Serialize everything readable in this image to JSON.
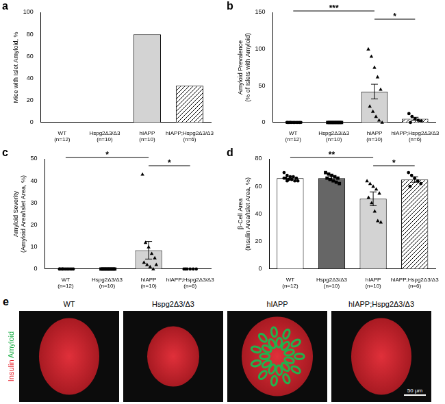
{
  "chart_data": [
    {
      "panel": "a",
      "type": "bar",
      "y_label": "Mice with Islet Amyloid, %",
      "categories": [
        [
          "WT",
          "(n=12)"
        ],
        [
          "Hspg2Δ3/Δ3",
          "(n=10)"
        ],
        [
          "hIAPP",
          "(n=10)"
        ],
        [
          "hIAPP;Hspg2Δ3/Δ3",
          "(n=6)"
        ]
      ],
      "values": [
        0,
        0,
        80,
        33.3
      ],
      "colors": [
        "#ffffff",
        "#666666",
        "#d3d3d3",
        "#ffffff"
      ],
      "ylim": [
        0,
        100
      ],
      "yticks": [
        0,
        20,
        40,
        60,
        80,
        100
      ],
      "grid": false
    },
    {
      "panel": "b",
      "type": "bar",
      "y_label": [
        "Amyloid Prevalence",
        "(% of Islets with Amyloid)"
      ],
      "categories": [
        [
          "WT",
          "(n=12)"
        ],
        [
          "Hspg2Δ3/Δ3",
          "(n=10)"
        ],
        [
          "hIAPP",
          "(n=10)"
        ],
        [
          "hIAPP;Hspg2Δ3/Δ3",
          "(n=6)"
        ]
      ],
      "values": [
        0,
        0,
        42,
        5
      ],
      "errors": [
        0,
        0,
        10,
        2
      ],
      "points": [
        [
          0,
          0,
          0,
          0,
          0,
          0,
          0,
          0,
          0,
          0,
          0,
          0
        ],
        [
          0,
          0,
          0,
          0,
          0,
          0,
          0,
          0,
          0,
          0
        ],
        [
          100,
          90,
          75,
          62,
          45,
          22,
          15,
          8,
          3,
          0
        ],
        [
          12,
          8,
          5,
          3,
          2,
          0
        ]
      ],
      "marker": [
        "circle",
        "rect",
        "triangle",
        "circle"
      ],
      "colors": [
        "#ffffff",
        "#666666",
        "#d3d3d3",
        "#ffffff"
      ],
      "significance": [
        {
          "between": [
            "WT",
            "hIAPP"
          ],
          "label": "***"
        },
        {
          "between": [
            "hIAPP",
            "hIAPP;Hspg2Δ3/Δ3"
          ],
          "label": "*"
        }
      ],
      "ylim": [
        0,
        150
      ],
      "yticks": [
        0,
        50,
        100,
        150
      ],
      "grid": false
    },
    {
      "panel": "c",
      "type": "bar",
      "y_label": [
        "Amyloid Severity",
        "(Amyloid Area/Islet Area, %)"
      ],
      "categories": [
        [
          "WT",
          "(n=12)"
        ],
        [
          "Hspg2Δ3/Δ3",
          "(n=10)"
        ],
        [
          "hIAPP",
          "(n=10)"
        ],
        [
          "hIAPP;Hspg2Δ3/Δ3",
          "(n=6)"
        ]
      ],
      "values": [
        0,
        0,
        8.5,
        0
      ],
      "errors": [
        0,
        0,
        4,
        0
      ],
      "points": [
        [
          0,
          0,
          0,
          0,
          0,
          0,
          0,
          0,
          0,
          0,
          0,
          0
        ],
        [
          0,
          0,
          0,
          0,
          0,
          0,
          0,
          0,
          0,
          0
        ],
        [
          43,
          12,
          10,
          7,
          5,
          3,
          2,
          1,
          0,
          2
        ],
        [
          0,
          0,
          0,
          0,
          0,
          0
        ]
      ],
      "marker": [
        "circle",
        "rect",
        "triangle",
        "circle"
      ],
      "colors": [
        "#ffffff",
        "#666666",
        "#d3d3d3",
        "#ffffff"
      ],
      "significance": [
        {
          "between": [
            "WT",
            "hIAPP"
          ],
          "label": "*"
        },
        {
          "between": [
            "hIAPP",
            "hIAPP;Hspg2Δ3/Δ3"
          ],
          "label": "*"
        }
      ],
      "ylim": [
        0,
        50
      ],
      "yticks": [
        0,
        10,
        20,
        30,
        40,
        50
      ],
      "grid": false
    },
    {
      "panel": "d",
      "type": "bar",
      "y_label": [
        "β-Cell Area",
        "(Insulin Area/Islet Area, %)"
      ],
      "categories": [
        [
          "WT",
          "(n=12)"
        ],
        [
          "Hspg2Δ3/Δ3",
          "(n=10)"
        ],
        [
          "hIAPP",
          "(n=10)"
        ],
        [
          "hIAPP;Hspg2Δ3/Δ3",
          "(n=6)"
        ]
      ],
      "values": [
        66,
        66,
        51,
        65
      ],
      "errors": [
        1,
        1.5,
        5,
        2
      ],
      "points": [
        [
          70,
          68,
          67,
          67,
          66,
          66,
          65,
          65,
          64,
          64,
          66,
          64
        ],
        [
          70,
          69,
          68,
          67,
          66,
          66,
          65,
          64,
          63,
          62
        ],
        [
          64,
          62,
          60,
          58,
          55,
          52,
          48,
          42,
          35,
          34
        ],
        [
          70,
          68,
          66,
          64,
          62,
          60
        ]
      ],
      "marker": [
        "circle",
        "rect",
        "triangle",
        "circle"
      ],
      "colors": [
        "#ffffff",
        "#666666",
        "#d3d3d3",
        "#ffffff"
      ],
      "significance": [
        {
          "between": [
            "WT",
            "hIAPP"
          ],
          "label": "**"
        },
        {
          "between": [
            "hIAPP",
            "hIAPP;Hspg2Δ3/Δ3"
          ],
          "label": "*"
        }
      ],
      "ylim": [
        0,
        80
      ],
      "yticks": [
        0,
        20,
        40,
        60,
        80
      ],
      "grid": false
    }
  ],
  "image_panel": {
    "panel": "e",
    "titles": [
      "WT",
      "Hspg2Δ3/Δ3",
      "hIAPP",
      "hIAPP;Hspg2Δ3/Δ3"
    ],
    "stain_labels": [
      {
        "text": "Insulin",
        "color": "#e8202a"
      },
      {
        "text": "Amyloid",
        "color": "#22b24c"
      }
    ],
    "scale_bar": "50 μm"
  }
}
